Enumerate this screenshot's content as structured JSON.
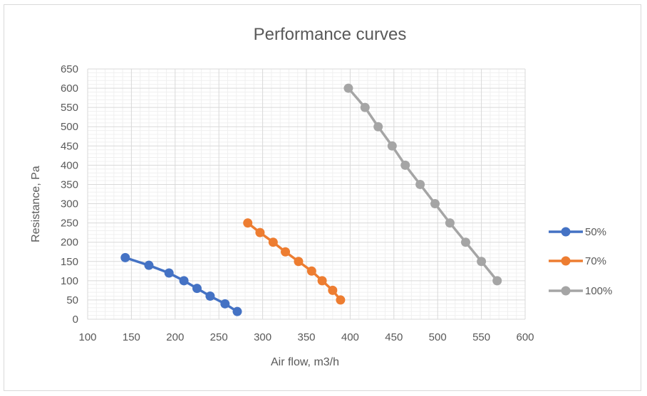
{
  "chart_data": {
    "type": "line",
    "title": "Performance curves",
    "xlabel": "Air flow, m3/h",
    "ylabel": "Resistance, Pa",
    "xlim": [
      100,
      600
    ],
    "ylim": [
      0,
      650
    ],
    "x_ticks": [
      "100",
      "150",
      "200",
      "250",
      "300",
      "350",
      "400",
      "450",
      "500",
      "550",
      "600"
    ],
    "y_ticks": [
      "0",
      "50",
      "100",
      "150",
      "200",
      "250",
      "300",
      "350",
      "400",
      "450",
      "500",
      "550",
      "600",
      "650"
    ],
    "grid": true,
    "legend_position": "right",
    "series": [
      {
        "name": "50%",
        "color": "#4472c4",
        "x": [
          143,
          170,
          193,
          210,
          225,
          240,
          257,
          271
        ],
        "y": [
          160,
          140,
          120,
          100,
          80,
          60,
          40,
          20
        ]
      },
      {
        "name": "70%",
        "color": "#ed7d31",
        "x": [
          283,
          297,
          312,
          326,
          341,
          356,
          368,
          380,
          389
        ],
        "y": [
          250,
          225,
          200,
          175,
          150,
          125,
          100,
          75,
          50
        ]
      },
      {
        "name": "100%",
        "color": "#a5a5a5",
        "x": [
          398,
          417,
          432,
          448,
          463,
          480,
          497,
          514,
          532,
          550,
          568
        ],
        "y": [
          600,
          550,
          500,
          450,
          400,
          350,
          300,
          250,
          200,
          150,
          100
        ]
      }
    ]
  }
}
